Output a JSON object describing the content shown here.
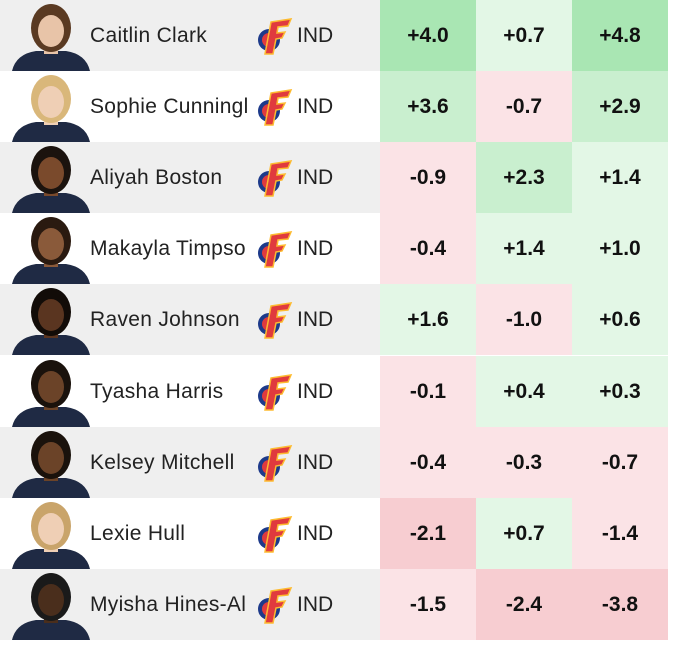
{
  "table": {
    "rows": [
      [
        "Caitlin Clark",
        "IND",
        "+4.0",
        "+0.7",
        "+4.8"
      ],
      [
        "Sophie Cunningl",
        "IND",
        "+3.6",
        "-0.7",
        "+2.9"
      ],
      [
        "Aliyah Boston",
        "IND",
        "-0.9",
        "+2.3",
        "+1.4"
      ],
      [
        "Makayla Timpso",
        "IND",
        "-0.4",
        "+1.4",
        "+1.0"
      ],
      [
        "Raven Johnson",
        "IND",
        "+1.6",
        "-1.0",
        "+0.6"
      ],
      [
        "Tyasha Harris",
        "IND",
        "-0.1",
        "+0.4",
        "+0.3"
      ],
      [
        "Kelsey Mitchell",
        "IND",
        "-0.4",
        "-0.3",
        "-0.7"
      ],
      [
        "Lexie Hull",
        "IND",
        "-2.1",
        "+0.7",
        "-1.4"
      ],
      [
        "Myisha Hines-Al",
        "IND",
        "-1.5",
        "-2.4",
        "-3.8"
      ]
    ]
  }
}
